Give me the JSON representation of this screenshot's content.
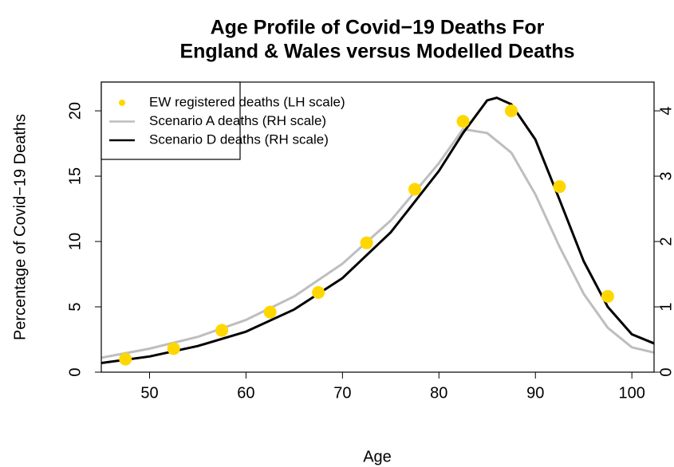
{
  "chart_data": {
    "type": "line",
    "title": [
      "Age Profile of Covid−19 Deaths For",
      "England & Wales versus Modelled Deaths"
    ],
    "x_label": "Age",
    "y_label": "Percentage of Covid−19 Deaths",
    "xlim": [
      45,
      102.3
    ],
    "xticks": [
      50,
      60,
      70,
      80,
      90,
      100
    ],
    "ylim": [
      0,
      22.2
    ],
    "yticks": [
      0,
      5,
      10,
      15,
      20
    ],
    "y2lim": [
      0,
      4.44
    ],
    "y2ticks": [
      0,
      1,
      2,
      3,
      4
    ],
    "legend_position": "top-left",
    "series": [
      {
        "name": "EW registered deaths (LH scale)",
        "type": "scatter",
        "color": "#ffd700",
        "x": [
          47.5,
          52.5,
          57.5,
          62.5,
          67.5,
          72.5,
          77.5,
          82.5,
          87.5,
          92.5,
          97.5
        ],
        "values": [
          1.0,
          1.8,
          3.2,
          4.6,
          6.1,
          9.9,
          14.0,
          19.2,
          20.0,
          14.2,
          5.8
        ]
      },
      {
        "name": "Scenario A deaths (RH scale)",
        "type": "line",
        "axis": "y2",
        "color": "#bebebe",
        "x": [
          45,
          50,
          55,
          60,
          65,
          70,
          75,
          80,
          82.5,
          85,
          87.5,
          90,
          92.5,
          95,
          97.5,
          100,
          102.3
        ],
        "values": [
          0.22,
          0.36,
          0.54,
          0.8,
          1.16,
          1.66,
          2.32,
          3.2,
          3.72,
          3.66,
          3.36,
          2.72,
          1.92,
          1.2,
          0.68,
          0.38,
          0.3
        ]
      },
      {
        "name": "Scenario D deaths (RH scale)",
        "type": "line",
        "axis": "y2",
        "color": "#000000",
        "x": [
          45,
          50,
          55,
          60,
          65,
          70,
          75,
          80,
          82.5,
          85,
          86,
          87.5,
          90,
          92.5,
          95,
          97.5,
          100,
          102.3
        ],
        "values": [
          0.14,
          0.24,
          0.4,
          0.62,
          0.96,
          1.44,
          2.14,
          3.08,
          3.66,
          4.16,
          4.2,
          4.1,
          3.56,
          2.64,
          1.7,
          1.0,
          0.58,
          0.44
        ]
      }
    ]
  }
}
